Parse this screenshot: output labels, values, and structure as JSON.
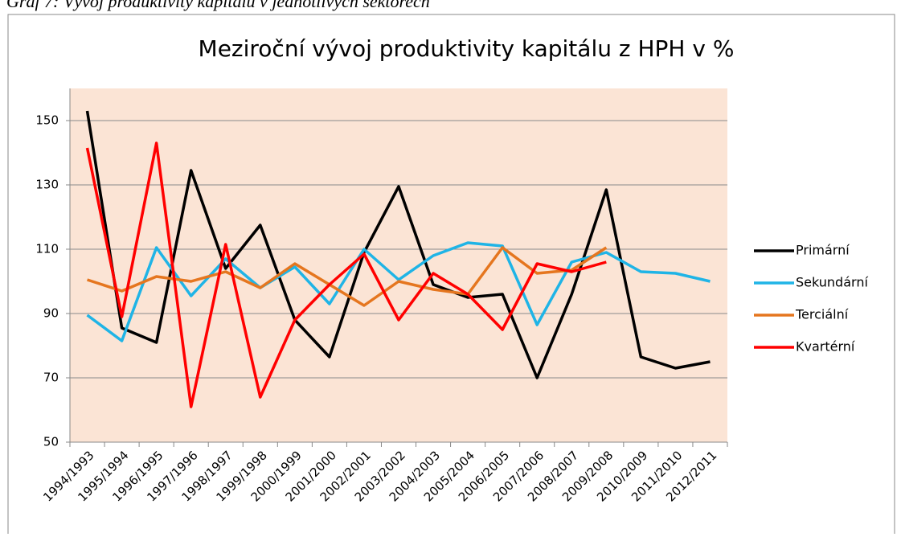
{
  "caption": "Graf 7: Vývoj produktivity kapitálu v jednotlivých sektorech",
  "chart_data": {
    "type": "line",
    "title": "Meziroční vývoj produktivity kapitálu z HPH v %",
    "categories": [
      "1994/1993",
      "1995/1994",
      "1996/1995",
      "1997/1996",
      "1998/1997",
      "1999/1998",
      "2000/1999",
      "2001/2000",
      "2002/2001",
      "2003/2002",
      "2004/2003",
      "2005/2004",
      "2006/2005",
      "2007/2006",
      "2008/2007",
      "2009/2008",
      "2010/2009",
      "2011/2010",
      "2012/2011"
    ],
    "series": [
      {
        "name": "Primární",
        "color": "#000000",
        "values": [
          153,
          85.5,
          81,
          134.5,
          104,
          117.5,
          88,
          76.5,
          109,
          129.5,
          99,
          95,
          96,
          70,
          96,
          128.5,
          76.5,
          73,
          75
        ]
      },
      {
        "name": "Sekundární",
        "color": "#1fb4e6",
        "values": [
          89.5,
          81.5,
          110.5,
          95.5,
          107,
          98,
          104.5,
          93,
          110,
          100.5,
          108,
          112,
          111,
          86.5,
          106,
          109,
          103,
          102.5,
          100
        ]
      },
      {
        "name": "Terciální",
        "color": "#e5761f",
        "values": [
          100.5,
          97,
          101.5,
          100,
          103,
          98,
          105.5,
          99,
          92.5,
          100,
          97.5,
          96,
          110.5,
          102.5,
          103.5,
          110.5,
          null,
          null,
          null
        ]
      },
      {
        "name": "Kvartérní",
        "color": "#ff0000",
        "values": [
          141.5,
          89,
          143,
          61,
          111.5,
          64,
          88,
          99,
          108.5,
          88,
          102.5,
          96,
          85,
          105.5,
          103,
          106,
          null,
          null,
          null
        ]
      }
    ],
    "ylim": [
      50,
      160
    ],
    "yticks": [
      50,
      70,
      90,
      110,
      130,
      150
    ],
    "grid": true,
    "legend": "right",
    "plot_background": "#fbe4d5"
  }
}
